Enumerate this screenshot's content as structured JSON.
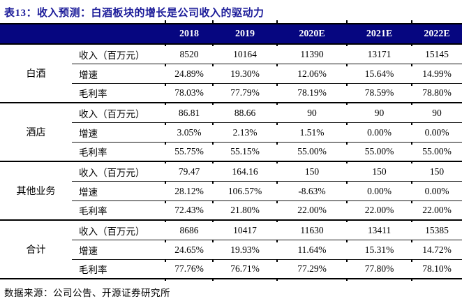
{
  "title": "表13：收入预测：白酒板块的增长是公司收入的驱动力",
  "source_note": "数据来源：公司公告、开源证券研究所",
  "colors": {
    "header_bg": "#060680",
    "title_text": "#1b1b99",
    "rule_line": "#000000"
  },
  "table": {
    "year_headers": [
      "2018",
      "2019",
      "2020E",
      "2021E",
      "2022E"
    ],
    "groups": [
      {
        "name": "白酒",
        "rows": [
          {
            "label": "收入（百万元）",
            "values": [
              "8520",
              "10164",
              "11390",
              "13171",
              "15145"
            ]
          },
          {
            "label": "增速",
            "values": [
              "24.89%",
              "19.30%",
              "12.06%",
              "15.64%",
              "14.99%"
            ]
          },
          {
            "label": "毛利率",
            "values": [
              "78.03%",
              "77.79%",
              "78.19%",
              "78.59%",
              "78.80%"
            ]
          }
        ]
      },
      {
        "name": "酒店",
        "rows": [
          {
            "label": "收入（百万元）",
            "values": [
              "86.81",
              "88.66",
              "90",
              "90",
              "90"
            ]
          },
          {
            "label": "增速",
            "values": [
              "3.05%",
              "2.13%",
              "1.51%",
              "0.00%",
              "0.00%"
            ]
          },
          {
            "label": "毛利率",
            "values": [
              "55.75%",
              "55.15%",
              "55.00%",
              "55.00%",
              "55.00%"
            ]
          }
        ]
      },
      {
        "name": "其他业务",
        "rows": [
          {
            "label": "收入（百万元）",
            "values": [
              "79.47",
              "164.16",
              "150",
              "150",
              "150"
            ]
          },
          {
            "label": "增速",
            "values": [
              "28.12%",
              "106.57%",
              "-8.63%",
              "0.00%",
              "0.00%"
            ]
          },
          {
            "label": "毛利率",
            "values": [
              "72.43%",
              "21.80%",
              "22.00%",
              "22.00%",
              "22.00%"
            ]
          }
        ]
      },
      {
        "name": "合计",
        "rows": [
          {
            "label": "收入（百万元）",
            "values": [
              "8686",
              "10417",
              "11630",
              "13411",
              "15385"
            ]
          },
          {
            "label": "增速",
            "values": [
              "24.65%",
              "19.93%",
              "11.64%",
              "15.31%",
              "14.72%"
            ]
          },
          {
            "label": "毛利率",
            "values": [
              "77.76%",
              "76.71%",
              "77.29%",
              "77.80%",
              "78.10%"
            ]
          }
        ]
      }
    ]
  }
}
